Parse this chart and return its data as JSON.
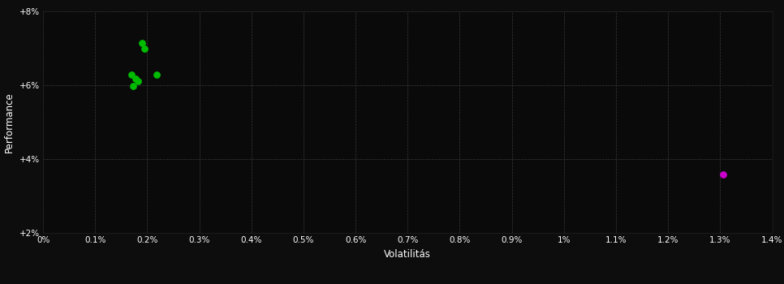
{
  "background_color": "#0d0d0d",
  "plot_bg_color": "#0a0a0a",
  "grid_color": "#3a3a3a",
  "tick_color": "#ffffff",
  "label_color": "#ffffff",
  "xlabel": "Volatilitás",
  "ylabel": "Performance",
  "xlim": [
    0,
    0.014
  ],
  "ylim": [
    0.02,
    0.08
  ],
  "xticks": [
    0.0,
    0.001,
    0.002,
    0.003,
    0.004,
    0.005,
    0.006,
    0.007,
    0.008,
    0.009,
    0.01,
    0.011,
    0.012,
    0.013,
    0.014
  ],
  "xtick_labels": [
    "0%",
    "0.1%",
    "0.2%",
    "0.3%",
    "0.4%",
    "0.5%",
    "0.6%",
    "0.7%",
    "0.8%",
    "0.9%",
    "1%",
    "1.1%",
    "1.2%",
    "1.3%",
    "1.4%"
  ],
  "yticks": [
    0.02,
    0.04,
    0.06,
    0.08
  ],
  "ytick_labels": [
    "+2%",
    "+4%",
    "+6%",
    "+8%"
  ],
  "green_points": [
    [
      0.0019,
      0.0715
    ],
    [
      0.00195,
      0.07
    ],
    [
      0.0017,
      0.0628
    ],
    [
      0.00177,
      0.0618
    ],
    [
      0.00182,
      0.061
    ],
    [
      0.00218,
      0.0628
    ],
    [
      0.00172,
      0.0598
    ]
  ],
  "magenta_points": [
    [
      0.01305,
      0.0358
    ]
  ],
  "green_color": "#00bb00",
  "magenta_color": "#cc00cc",
  "marker_size": 28
}
